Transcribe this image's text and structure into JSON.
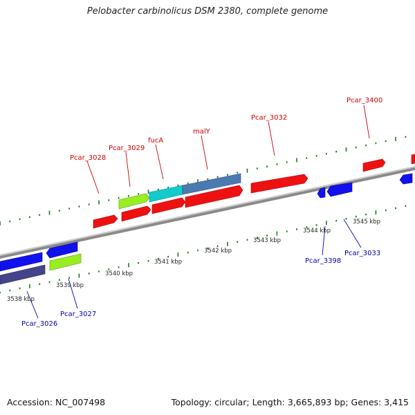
{
  "title": "Pelobacter carbinolicus DSM 2380, complete genome",
  "accession": "Accession: NC_007498",
  "topology": "Topology: circular; Length: 3,665,893 bp; Genes: 3,415",
  "colors": {
    "top_label": "#cc0000",
    "bottom_label": "#0000aa",
    "red_gene": "#ee1111",
    "blue_gene": "#1111ee",
    "green_gene": "#99ee22",
    "cyan_gene": "#11cccc",
    "steel_gene": "#4a7ab0",
    "navy_gene": "#44448a",
    "tick": "#1a7a1a",
    "backbone": "#888888"
  },
  "kbp_labels": [
    "3538 kbp",
    "3539 kbp",
    "3540 kbp",
    "3541 kbp",
    "3542 kbp",
    "3543 kbp",
    "3544 kbp",
    "3545 kbp"
  ],
  "top_gene_labels": [
    "Pcar_3028",
    "Pcar_3029",
    "fucA",
    "malY",
    "Pcar_3032",
    "Pcar_3400"
  ],
  "bottom_gene_labels": [
    "Pcar_3026",
    "Pcar_3027",
    "Pcar_3398",
    "Pcar_3033"
  ]
}
